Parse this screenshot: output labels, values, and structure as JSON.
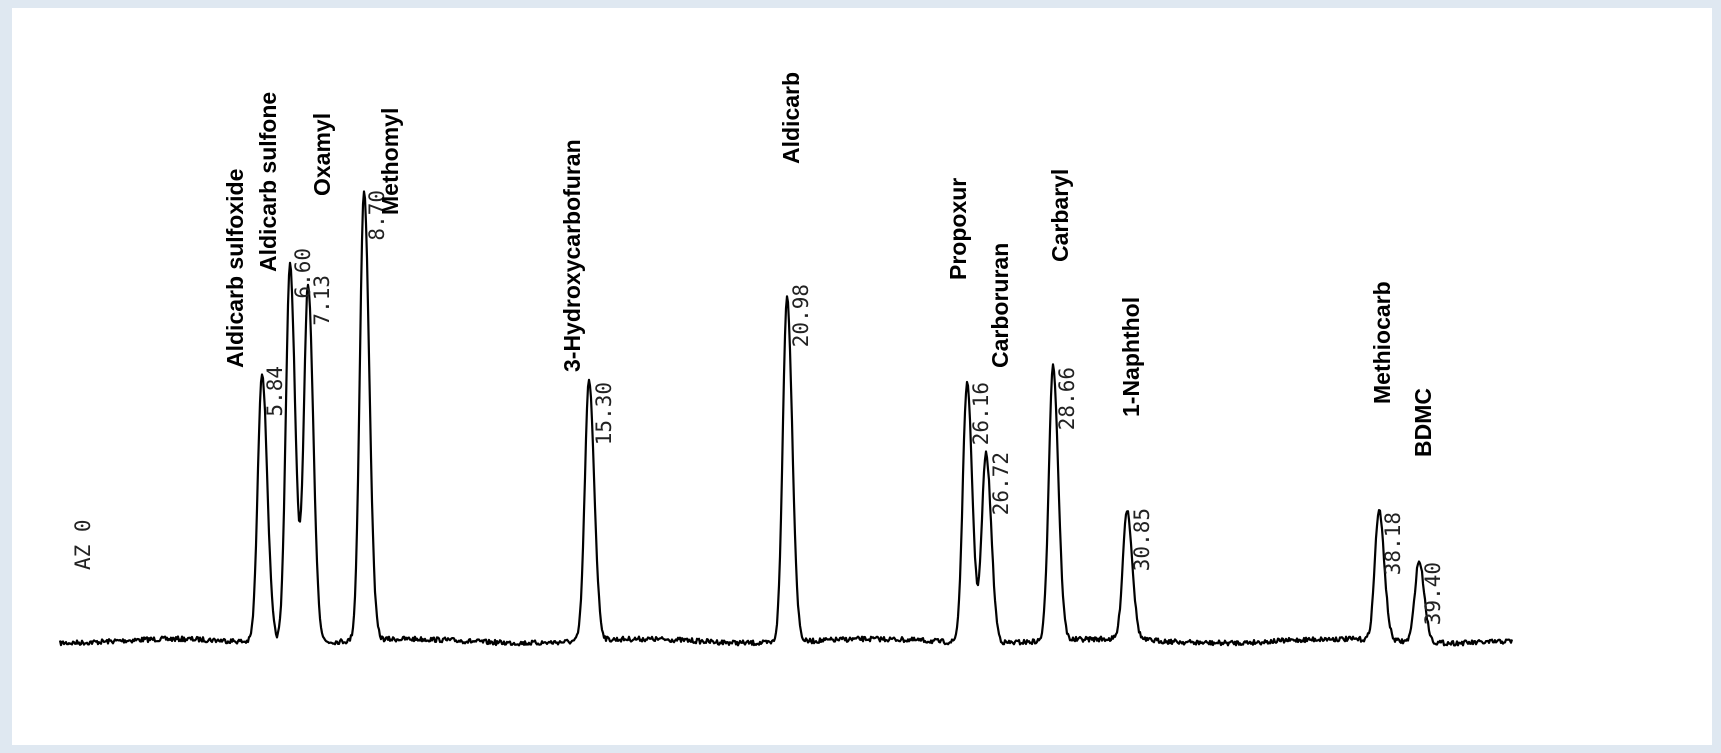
{
  "chart_data": {
    "type": "line",
    "az_label": "AZ 0",
    "peaks": [
      {
        "rt": "5.84",
        "rt_value": 5.84,
        "name": "Aldicarb sulfoxide",
        "height": 0.5
      },
      {
        "rt": "6.60",
        "rt_value": 6.6,
        "name": "Aldicarb sulfone",
        "height": 0.7
      },
      {
        "rt": "7.13",
        "rt_value": 7.13,
        "name": "Oxamyl",
        "height": 0.66
      },
      {
        "rt": "8.70",
        "rt_value": 8.7,
        "name": "Methomyl",
        "height": 0.83
      },
      {
        "rt": "15.30",
        "rt_value": 15.3,
        "name": "3-Hydroxycarbofuran",
        "height": 0.48
      },
      {
        "rt": "20.98",
        "rt_value": 20.98,
        "name": "Aldicarb",
        "height": 0.64
      },
      {
        "rt": "26.16",
        "rt_value": 26.16,
        "name": "Propoxur",
        "height": 0.48
      },
      {
        "rt": "26.72",
        "rt_value": 26.72,
        "name": "Carboruran",
        "height": 0.35
      },
      {
        "rt": "28.66",
        "rt_value": 28.66,
        "name": "Carbaryl",
        "height": 0.51
      },
      {
        "rt": "30.85",
        "rt_value": 30.85,
        "name": "1-Naphthol",
        "height": 0.24
      },
      {
        "rt": "38.18",
        "rt_value": 38.18,
        "name": "Methiocarb",
        "height": 0.24
      },
      {
        "rt": "39.40",
        "rt_value": 39.4,
        "name": "BDMC",
        "height": 0.15
      }
    ],
    "grid": false,
    "legend": "none"
  }
}
